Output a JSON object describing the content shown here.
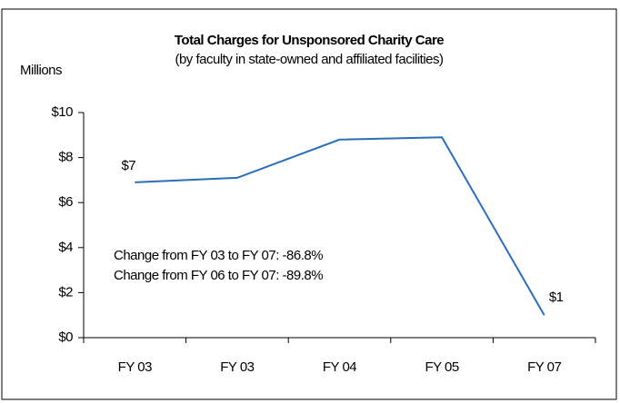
{
  "chart_data": {
    "type": "line",
    "title": "Total Charges for Unsponsored Charity Care",
    "subtitle": "(by faculty in state-owned and affiliated facilities)",
    "y_axis_label": "Millions",
    "categories": [
      "FY 03",
      "FY 03",
      "FY 04",
      "FY 05",
      "FY 07"
    ],
    "values": [
      6.9,
      7.1,
      8.8,
      8.9,
      1.0
    ],
    "value_labels": [
      "$7",
      null,
      null,
      null,
      "$1"
    ],
    "color": "#2a6ebb",
    "ylim": [
      0,
      10
    ],
    "yticks": [
      {
        "value": 0,
        "label": "$0"
      },
      {
        "value": 2,
        "label": "$2"
      },
      {
        "value": 4,
        "label": "$4"
      },
      {
        "value": 6,
        "label": "$6"
      },
      {
        "value": 8,
        "label": "$8"
      },
      {
        "value": 10,
        "label": "$10"
      }
    ],
    "annotations": [
      "Change from FY 03 to FY 07:  -86.8%",
      "Change from FY 06 to FY 07:  -89.8%"
    ],
    "grid": false
  }
}
